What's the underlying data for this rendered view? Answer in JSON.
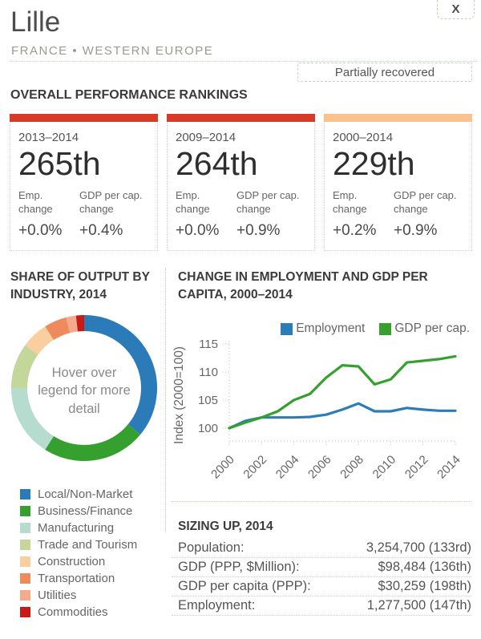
{
  "window": {
    "close_label": "X"
  },
  "header": {
    "title": "Lille",
    "subtitle": "FRANCE • WESTERN EUROPE",
    "status_badge": "Partially recovered"
  },
  "rankings": {
    "heading": "OVERALL PERFORMANCE RANKINGS",
    "emp_label": "Emp. change",
    "gdp_label": "GDP per cap. change",
    "cards": [
      {
        "period": "2013–2014",
        "rank": "265th",
        "bar_color": "#d73b27",
        "emp_change": "+0.0%",
        "gdp_change": "+0.4%"
      },
      {
        "period": "2009–2014",
        "rank": "264th",
        "bar_color": "#d73b27",
        "emp_change": "+0.0%",
        "gdp_change": "+0.9%"
      },
      {
        "period": "2000–2014",
        "rank": "229th",
        "bar_color": "#fcc28c",
        "emp_change": "+0.2%",
        "gdp_change": "+0.9%"
      }
    ]
  },
  "industry": {
    "heading": "SHARE OF OUTPUT BY INDUSTRY, 2014",
    "center_note": "Hover over legend for more detail"
  },
  "growth_chart": {
    "heading": "CHANGE IN EMPLOYMENT AND GDP PER CAPITA, 2000–2014",
    "ylabel": "Index (2000=100)",
    "legend": [
      "Employment",
      "GDP per cap."
    ]
  },
  "sizing": {
    "heading": "SIZING UP, 2014",
    "rows": [
      {
        "label": "Population:",
        "value": "3,254,700 (133rd)"
      },
      {
        "label": "GDP (PPP, $Million):",
        "value": "$98,484 (136th)"
      },
      {
        "label": "GDP per capita (PPP):",
        "value": "$30,259 (198th)"
      },
      {
        "label": "Employment:",
        "value": "1,277,500 (147th)"
      }
    ]
  },
  "chart_data": [
    {
      "type": "pie",
      "donut": true,
      "title": "SHARE OF OUTPUT BY INDUSTRY, 2014",
      "segments": [
        {
          "label": "Local/Non-Market",
          "value": 36.0,
          "color": "#2b7bb9"
        },
        {
          "label": "Business/Finance",
          "value": 23.0,
          "color": "#35a02d"
        },
        {
          "label": "Manufacturing",
          "value": 16.0,
          "color": "#b5dcce"
        },
        {
          "label": "Trade and Tourism",
          "value": 10.0,
          "color": "#c4d79b"
        },
        {
          "label": "Construction",
          "value": 6.0,
          "color": "#fbce9f"
        },
        {
          "label": "Transportation",
          "value": 5.0,
          "color": "#ee8a5c"
        },
        {
          "label": "Utilities",
          "value": 2.2,
          "color": "#f4ab8d"
        },
        {
          "label": "Commodities",
          "value": 1.8,
          "color": "#c91a15"
        }
      ]
    },
    {
      "type": "line",
      "title": "CHANGE IN EMPLOYMENT AND GDP PER CAPITA, 2000–2014",
      "ylabel": "Index (2000=100)",
      "x": [
        2000,
        2001,
        2002,
        2003,
        2004,
        2005,
        2006,
        2007,
        2008,
        2009,
        2010,
        2011,
        2012,
        2013,
        2014
      ],
      "series": [
        {
          "name": "Employment",
          "color": "#2c7cba",
          "values": [
            100,
            101.3,
            101.9,
            101.9,
            101.9,
            102.0,
            102.4,
            103.3,
            104.4,
            103.0,
            103.0,
            103.6,
            103.3,
            103.1,
            103.1
          ]
        },
        {
          "name": "GDP per cap.",
          "color": "#35a02d",
          "values": [
            100,
            101.0,
            101.9,
            103.0,
            105.0,
            106.1,
            109.0,
            111.2,
            111.0,
            107.8,
            108.7,
            111.7,
            112.0,
            112.3,
            112.8
          ]
        }
      ],
      "ylim": [
        97,
        116
      ],
      "yticks": [
        100,
        105,
        110,
        115
      ],
      "xticks": [
        2000,
        2002,
        2004,
        2006,
        2008,
        2010,
        2012,
        2014
      ],
      "legend_position": "top-right",
      "grid": false
    }
  ]
}
